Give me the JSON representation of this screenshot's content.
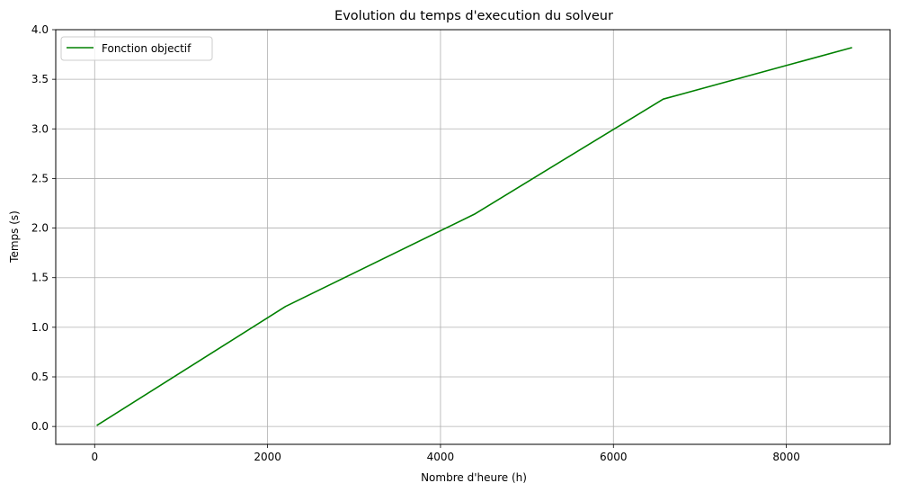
{
  "chart_data": {
    "type": "line",
    "title": "Evolution du temps d'execution du solveur",
    "xlabel": "Nombre d'heure (h)",
    "ylabel": "Temps (s)",
    "xlim": [
      -450,
      9200
    ],
    "ylim": [
      -0.18,
      4.0
    ],
    "xticks": [
      0,
      2000,
      4000,
      6000,
      8000
    ],
    "xtick_labels": [
      "0",
      "2000",
      "4000",
      "6000",
      "8000"
    ],
    "yticks": [
      0.0,
      0.5,
      1.0,
      1.5,
      2.0,
      2.5,
      3.0,
      3.5,
      4.0
    ],
    "ytick_labels": [
      "0.0",
      "0.5",
      "1.0",
      "1.5",
      "2.0",
      "2.5",
      "3.0",
      "3.5",
      "4.0"
    ],
    "grid": true,
    "legend_position": "top-left",
    "series": [
      {
        "name": "Fonction objectif",
        "color": "#008000",
        "x": [
          24,
          2208,
          4392,
          6576,
          8760
        ],
        "y": [
          0.01,
          1.21,
          2.14,
          3.3,
          3.82
        ]
      }
    ]
  }
}
